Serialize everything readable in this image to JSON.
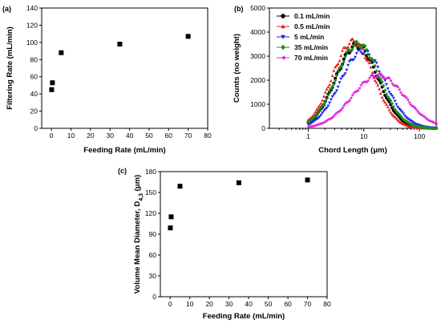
{
  "chart_data": [
    {
      "type": "scatter",
      "panel_label": "(a)",
      "xlabel": "Feeding Rate (mL/min)",
      "ylabel": "Filtering Rate (mL/min)",
      "xlim": [
        -5,
        80
      ],
      "ylim": [
        0,
        140
      ],
      "xticks": [
        0,
        10,
        20,
        30,
        40,
        50,
        60,
        70,
        80
      ],
      "yticks": [
        0,
        20,
        40,
        60,
        80,
        100,
        120,
        140
      ],
      "marker": "square",
      "x": [
        0.1,
        0.5,
        5,
        35,
        70
      ],
      "y": [
        45,
        53,
        88,
        98,
        107
      ],
      "colors": {
        "marker": "#000000"
      }
    },
    {
      "type": "scatter",
      "panel_label": "(b)",
      "xlabel": "Chord Length (μm)",
      "ylabel": "Counts (no weight)",
      "xscale": "log",
      "xlim": [
        0.2,
        200
      ],
      "ylim": [
        0,
        5000
      ],
      "xticks": [
        1,
        10,
        100
      ],
      "xtick_labels": [
        "1",
        "10",
        "100"
      ],
      "yticks": [
        0,
        1000,
        2000,
        3000,
        4000,
        5000
      ],
      "legend_position": "top-left",
      "series": [
        {
          "name": "0.1 mL/min",
          "color": "#000000",
          "marker": "circle",
          "peak_x": 7.5,
          "peak_y": 3450,
          "width": 0.38,
          "start_x": 1.0
        },
        {
          "name": "0.5 mL/min",
          "color": "#ee1c1c",
          "marker": "triangle-up",
          "peak_x": 6.4,
          "peak_y": 3600,
          "width": 0.37,
          "start_x": 1.0
        },
        {
          "name": "5 mL/min",
          "color": "#1c22ee",
          "marker": "triangle-down",
          "peak_x": 9.5,
          "peak_y": 3200,
          "width": 0.4,
          "start_x": 1.0
        },
        {
          "name": "35 mL/min",
          "color": "#1f8a1f",
          "marker": "diamond",
          "peak_x": 7.8,
          "peak_y": 3500,
          "width": 0.39,
          "start_x": 1.0
        },
        {
          "name": "70 mL/min",
          "color": "#e020e0",
          "marker": "triangle-left",
          "peak_x": 18,
          "peak_y": 2200,
          "width": 0.47,
          "start_x": 1.0
        }
      ]
    },
    {
      "type": "scatter",
      "panel_label": "(c)",
      "xlabel": "Feeding Rate (mL/min)",
      "ylabel": "Volume Mean Diameter, D4,3 (μm)",
      "xlim": [
        -5,
        80
      ],
      "ylim": [
        0,
        180
      ],
      "xticks": [
        0,
        10,
        20,
        30,
        40,
        50,
        60,
        70,
        80
      ],
      "yticks": [
        0,
        30,
        60,
        90,
        120,
        150,
        180
      ],
      "marker": "square",
      "x": [
        0.1,
        0.5,
        5,
        35,
        70
      ],
      "y": [
        99,
        115,
        159,
        164,
        168
      ],
      "colors": {
        "marker": "#000000"
      }
    }
  ]
}
